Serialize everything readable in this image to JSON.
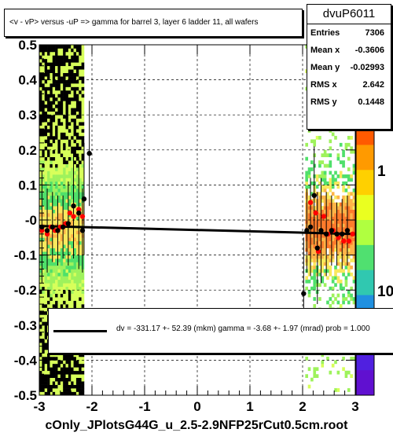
{
  "title": "<v - vP>       versus   -uP =>  gamma for barrel 3, layer 6 ladder 11, all  wafers",
  "stats": {
    "name": "dvuP6011",
    "rows": [
      {
        "label": "Entries",
        "value": "7306"
      },
      {
        "label": "Mean x",
        "value": "-0.3606"
      },
      {
        "label": "Mean y",
        "value": "-0.02993"
      },
      {
        "label": "RMS x",
        "value": "2.642"
      },
      {
        "label": "RMS y",
        "value": "0.1448"
      }
    ]
  },
  "fit_text": "dv = -331.17 +-  52.39 (mkm) gamma =   -3.68 +-  1.97 (mrad) prob = 1.000",
  "footer": "cOnly_JPlotsG44G_u_2.5-2.9NFP25rCut0.5cm.root",
  "colors": {
    "fit_line": "#000000",
    "profile_black": "#000000",
    "profile_red": "#ff0000"
  },
  "chart_data": {
    "type": "heatmap",
    "xlim": [
      -3,
      3
    ],
    "ylim": [
      -0.5,
      0.5
    ],
    "x_ticks": [
      "-3",
      "-2",
      "-1",
      "0",
      "1",
      "2",
      "3"
    ],
    "y_ticks": [
      "-0.5",
      "-0.4",
      "-0.3",
      "-0.2",
      "-0.1",
      "-0",
      "0.1",
      "0.2",
      "0.3",
      "0.4",
      "0.5"
    ],
    "z_ticks": [
      "1",
      "10"
    ],
    "z_scale": "log",
    "grid": true,
    "fit_line": {
      "x": [
        -3,
        3
      ],
      "y": [
        -0.017,
        -0.04
      ]
    },
    "black_points": [
      {
        "x": -2.95,
        "y": -0.02,
        "err": 0.16
      },
      {
        "x": -2.85,
        "y": -0.03,
        "err": 0.12
      },
      {
        "x": -2.75,
        "y": -0.02,
        "err": 0.1
      },
      {
        "x": -2.65,
        "y": -0.03,
        "err": 0.1
      },
      {
        "x": -2.55,
        "y": -0.02,
        "err": 0.09
      },
      {
        "x": -2.45,
        "y": -0.01,
        "err": 0.12
      },
      {
        "x": -2.35,
        "y": 0.04,
        "err": 0.15
      },
      {
        "x": -2.25,
        "y": 0.02,
        "err": 0.16
      },
      {
        "x": -2.15,
        "y": 0.06,
        "err": 0.16
      },
      {
        "x": -2.05,
        "y": 0.19,
        "err": 0.15
      },
      {
        "x": -2.18,
        "y": -0.03,
        "err": 0.12
      },
      {
        "x": 2.02,
        "y": -0.21,
        "err": 0.16
      },
      {
        "x": 2.08,
        "y": -0.03,
        "err": 0.12
      },
      {
        "x": 2.15,
        "y": -0.02,
        "err": 0.14
      },
      {
        "x": 2.22,
        "y": 0.07,
        "err": 0.14
      },
      {
        "x": 2.28,
        "y": -0.08,
        "err": 0.16
      },
      {
        "x": 2.35,
        "y": -0.03,
        "err": 0.15
      },
      {
        "x": 2.45,
        "y": -0.04,
        "err": 0.12
      },
      {
        "x": 2.55,
        "y": -0.03,
        "err": 0.1
      },
      {
        "x": 2.65,
        "y": -0.04,
        "err": 0.09
      },
      {
        "x": 2.75,
        "y": -0.04,
        "err": 0.1
      },
      {
        "x": 2.85,
        "y": -0.03,
        "err": 0.1
      }
    ],
    "red_points": [
      {
        "x": -2.95,
        "y": -0.03
      },
      {
        "x": -2.85,
        "y": -0.04
      },
      {
        "x": -2.78,
        "y": -0.02
      },
      {
        "x": -2.7,
        "y": -0.03
      },
      {
        "x": -2.6,
        "y": -0.02
      },
      {
        "x": -2.5,
        "y": -0.01
      },
      {
        "x": -2.42,
        "y": 0.02
      },
      {
        "x": -2.35,
        "y": 0.01
      },
      {
        "x": -2.25,
        "y": 0.03
      },
      {
        "x": -2.18,
        "y": 0.01
      },
      {
        "x": 2.15,
        "y": 0.05
      },
      {
        "x": 2.25,
        "y": 0.02
      },
      {
        "x": 2.3,
        "y": -0.09
      },
      {
        "x": 2.4,
        "y": 0.01
      },
      {
        "x": 2.48,
        "y": -0.04
      },
      {
        "x": 2.58,
        "y": -0.03
      },
      {
        "x": 2.68,
        "y": -0.05
      },
      {
        "x": 2.78,
        "y": -0.06
      },
      {
        "x": 2.88,
        "y": -0.06
      },
      {
        "x": 2.95,
        "y": -0.04
      }
    ]
  }
}
